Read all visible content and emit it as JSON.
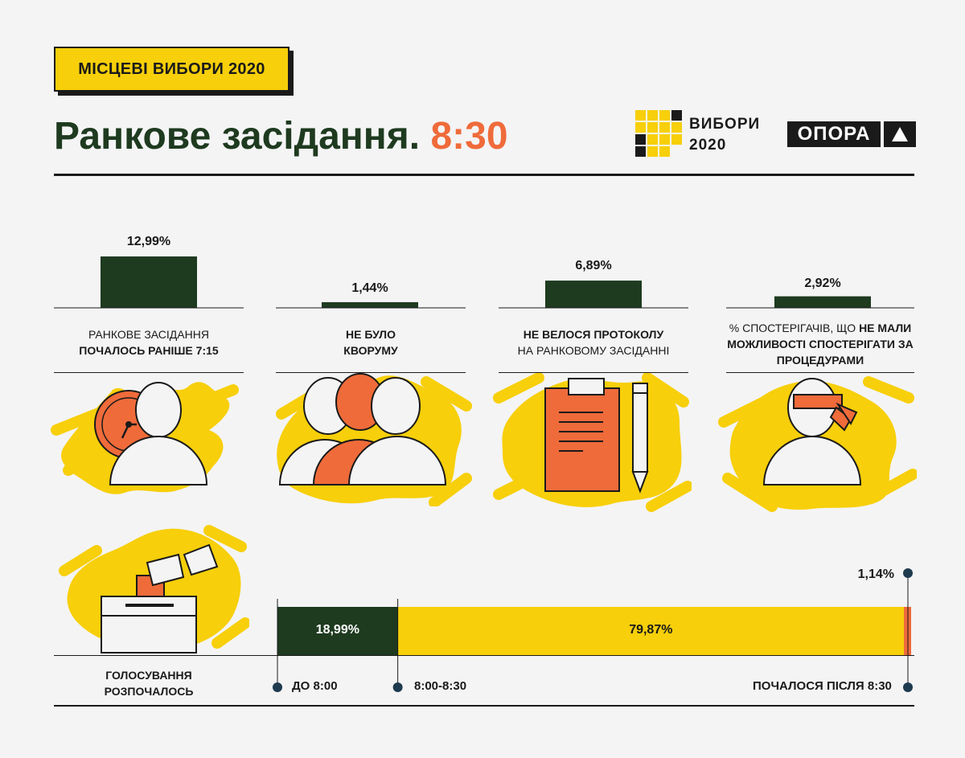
{
  "header": {
    "badge": "МІСЦЕВІ ВИБОРИ 2020",
    "title_main": "Ранкове засідання.",
    "title_time": "8:30",
    "logo_vybory_line1": "ВИБОРИ",
    "logo_vybory_line2": "2020",
    "logo_opora": "ОПОРА"
  },
  "colors": {
    "dark_green": "#1e3a1f",
    "yellow": "#f7cf0a",
    "orange": "#ef6b3a",
    "background": "#f4f4f5",
    "dark": "#1a1a1a"
  },
  "chart_data": [
    {
      "type": "bar",
      "categories": [
        "РАНКОВЕ ЗАСІДАННЯ ПОЧАЛОСЬ РАНІШЕ 7:15",
        "НЕ БУЛО КВОРУМУ",
        "НЕ ВЕЛОСЯ ПРОТОКОЛУ НА РАНКОВОМУ ЗАСІДАННІ",
        "% СПОСТЕРІГАЧІВ, ЩО НЕ МАЛИ МОЖЛИВОСТІ СПОСТЕРІГАТИ ЗА ПРОЦЕДУРАМИ"
      ],
      "values": [
        12.99,
        1.44,
        6.89,
        2.92
      ],
      "value_labels": [
        "12,99%",
        "1,44%",
        "6,89%",
        "2,92%"
      ],
      "label_parts": [
        {
          "line1_normal": "РАНКОВЕ ЗАСІДАННЯ",
          "line2_bold": "ПОЧАЛОСЬ РАНІШЕ 7:15"
        },
        {
          "line1_bold": "НЕ БУЛО",
          "line2_bold": "КВОРУМУ"
        },
        {
          "line1_bold": "НЕ ВЕЛОСЯ ПРОТОКОЛУ",
          "line2_normal": "НА РАНКОВОМУ ЗАСІДАННІ"
        },
        {
          "prefix_normal": "% СПОСТЕРІГАЧІВ, ЩО ",
          "bold_1": "НЕ МАЛИ",
          "bold_2": "МОЖЛИВОСТІ СПОСТЕРІГАТИ ЗА",
          "bold_3": "ПРОЦЕДУРАМИ"
        }
      ],
      "bar_color": "#1e3a1f",
      "ylim": [
        0,
        13
      ]
    },
    {
      "type": "bar",
      "stacked": true,
      "orientation": "horizontal",
      "title": "ГОЛОСУВАННЯ РОЗПОЧАЛОСЬ",
      "title_line1": "ГОЛОСУВАННЯ",
      "title_line2": "РОЗПОЧАЛОСЬ",
      "series": [
        {
          "name": "ДО 8:00",
          "values": [
            18.99
          ],
          "value_label": "18,99%",
          "color": "#1e3a1f"
        },
        {
          "name": "8:00-8:30",
          "values": [
            79.87
          ],
          "value_label": "79,87%",
          "color": "#f7cf0a"
        },
        {
          "name": "ПОЧАЛОСЯ ПІСЛЯ 8:30",
          "values": [
            1.14
          ],
          "value_label": "1,14%",
          "color": "#ef6b3a"
        }
      ],
      "xlim": [
        0,
        100
      ]
    }
  ],
  "icons": [
    "clock-person-icon",
    "group-icon",
    "clipboard-pencil-icon",
    "blindfold-person-icon",
    "ballot-box-icon"
  ]
}
